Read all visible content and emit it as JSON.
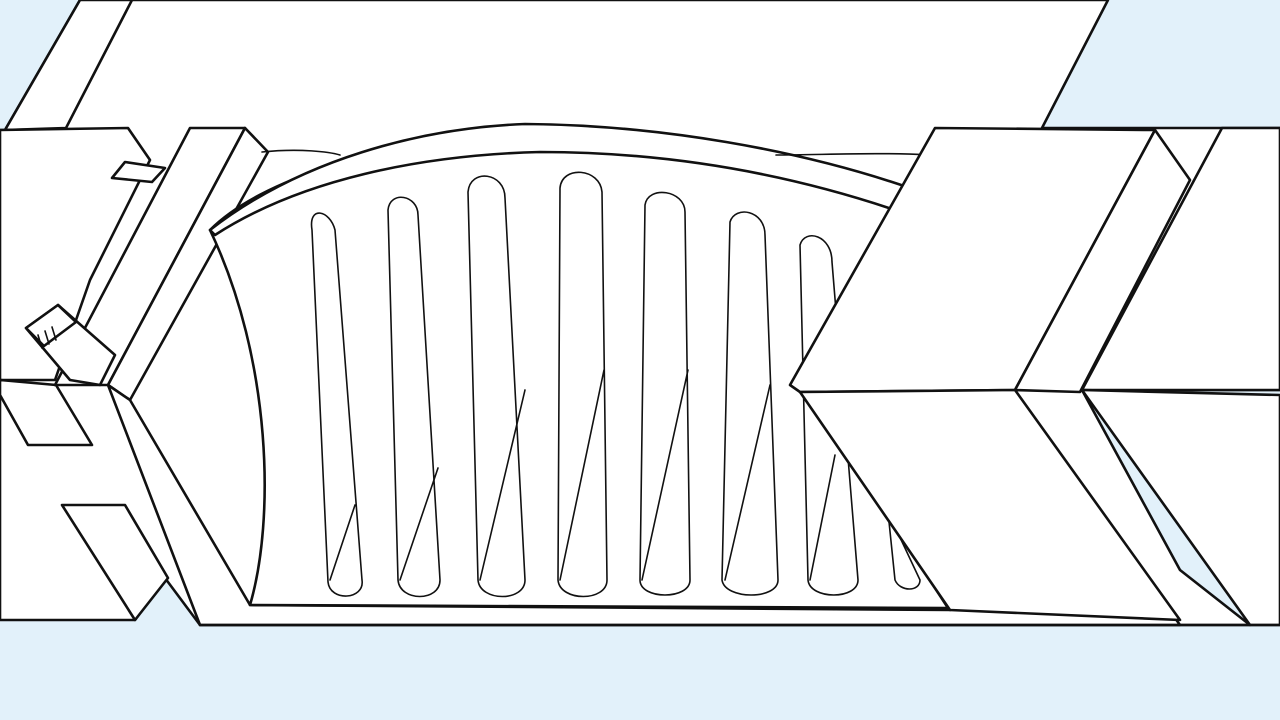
{
  "illustration": {
    "subject": "filter-housing-with-pleated-cartridge",
    "colors": {
      "background": "#e2f1fa",
      "line": "#111111",
      "fill": "#ffffff"
    }
  }
}
